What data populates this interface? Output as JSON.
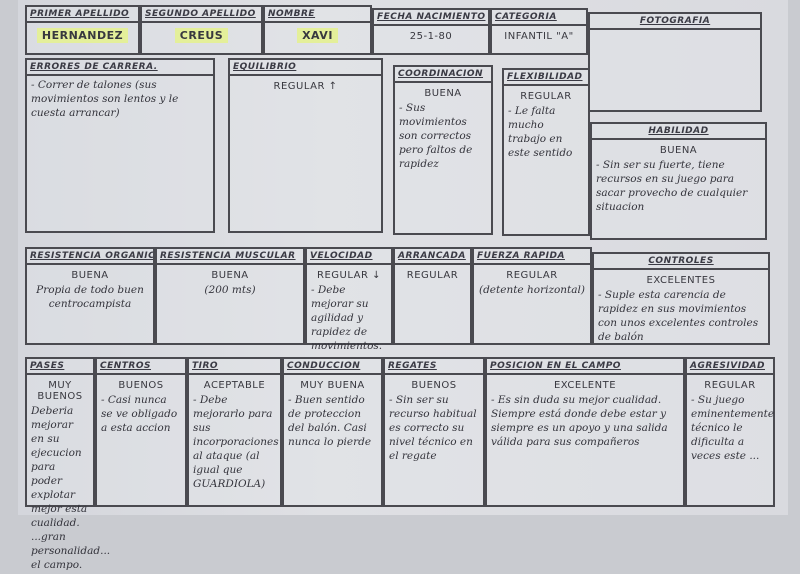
{
  "header": [
    {
      "id": "primer-apellido",
      "label": "Primer apellido",
      "value": "HERNANDEZ",
      "highlight": true
    },
    {
      "id": "segundo-apellido",
      "label": "Segundo apellido",
      "value": "CREUS",
      "highlight": true
    },
    {
      "id": "nombre",
      "label": "Nombre",
      "value": "XAVI",
      "highlight": true
    },
    {
      "id": "fecha-nacimiento",
      "label": "Fecha nacimiento",
      "value": "25-1-80"
    },
    {
      "id": "categoria",
      "label": "Categoria",
      "value": "INFANTIL \"A\""
    },
    {
      "id": "fotografia",
      "label": "Fotografia",
      "value": ""
    }
  ],
  "sections": [
    {
      "id": "errores-de-carrera",
      "label": "Errores de carrera.",
      "rating": "",
      "note": "- Correr de talones (sus movimientos son lentos y le cuesta arrancar)"
    },
    {
      "id": "equilibrio",
      "label": "Equilibrio",
      "rating": "REGULAR ↑",
      "note": ""
    },
    {
      "id": "coordinacion",
      "label": "Coordinacion",
      "rating": "BUENA",
      "note": "- Sus movimientos son correctos pero faltos de rapidez"
    },
    {
      "id": "flexibilidad",
      "label": "Flexibilidad",
      "rating": "REGULAR",
      "note": "- Le falta mucho trabajo en este sentido"
    },
    {
      "id": "habilidad",
      "label": "Habilidad",
      "rating": "BUENA",
      "note": "- Sin ser su fuerte, tiene recursos en su juego para sacar provecho de cualquier situacion"
    },
    {
      "id": "resistencia-organica",
      "label": "Resistencia organica",
      "rating": "BUENA",
      "note": "Propia de todo buen centrocampista"
    },
    {
      "id": "resistencia-muscular",
      "label": "Resistencia muscular",
      "rating": "BUENA",
      "note": "(200 mts)"
    },
    {
      "id": "velocidad",
      "label": "Velocidad",
      "rating": "REGULAR ↓",
      "note": "- Debe mejorar su agilidad y rapidez de movimientos."
    },
    {
      "id": "arrancada",
      "label": "Arrancada",
      "rating": "REGULAR",
      "note": ""
    },
    {
      "id": "fuerza-rapida",
      "label": "Fuerza rapida",
      "rating": "REGULAR",
      "note": "(detente horizontal)"
    },
    {
      "id": "controles",
      "label": "Controles",
      "rating": "EXCELENTES",
      "note": "- Suple esta carencia de rapidez en sus movimientos con unos excelentes controles de balón"
    },
    {
      "id": "pases",
      "label": "Pases",
      "rating": "MUY BUENOS",
      "note": "Deberia mejorar en su ejecucion para poder explotar mejor esta cualidad. ...gran personalidad... el campo."
    },
    {
      "id": "centros",
      "label": "Centros",
      "rating": "BUENOS",
      "note": "- Casi nunca se ve obligado a esta accion"
    },
    {
      "id": "tiro",
      "label": "Tiro",
      "rating": "ACEPTABLE",
      "note": "- Debe mejorarlo para sus incorporaciones al ataque (al igual que GUARDIOLA)"
    },
    {
      "id": "conduccion",
      "label": "Conduccion",
      "rating": "MUY BUENA",
      "note": "- Buen sentido de proteccion del balón. Casi nunca lo pierde"
    },
    {
      "id": "regates",
      "label": "Regates",
      "rating": "BUENOS",
      "note": "- Sin ser su recurso habitual es correcto su nivel técnico en el regate"
    },
    {
      "id": "posicion-en-el-campo",
      "label": "Posicion en el campo",
      "rating": "EXCELENTE",
      "note": "- Es sin duda su mejor cualidad. Siempre está donde debe estar y siempre es un apoyo y una salida válida para sus compañeros"
    },
    {
      "id": "agresividad",
      "label": "Agresividad",
      "rating": "REGULAR",
      "note": "- Su juego eminentemente técnico le dificulta a veces este ..."
    }
  ]
}
